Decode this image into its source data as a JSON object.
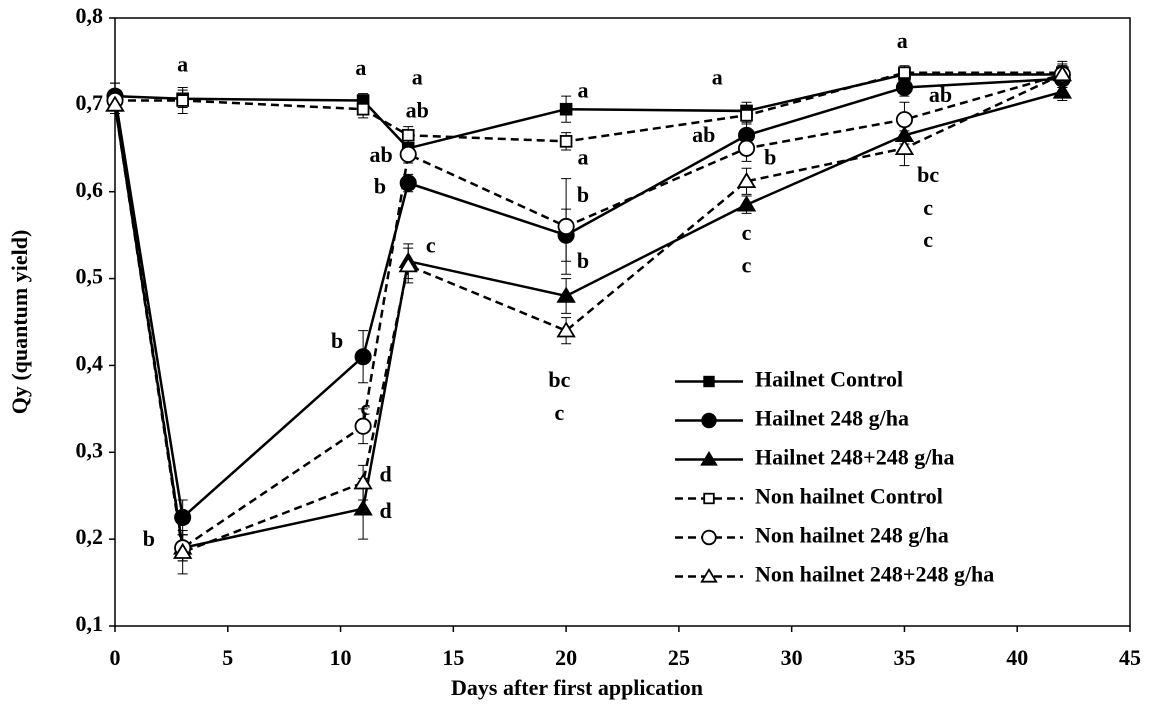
{
  "chart_data": {
    "type": "line",
    "xlabel": "Days after first application",
    "ylabel": "Qy (quantum yield)",
    "x": [
      0,
      3,
      11,
      13,
      20,
      28,
      35,
      42
    ],
    "xlim": [
      0,
      45
    ],
    "xticks": [
      0,
      5,
      10,
      15,
      20,
      25,
      30,
      35,
      40,
      45
    ],
    "ylim": [
      0.1,
      0.8
    ],
    "yticks": [
      {
        "value": 0.1,
        "label": "0,1"
      },
      {
        "value": 0.2,
        "label": "0,2"
      },
      {
        "value": 0.3,
        "label": "0,3"
      },
      {
        "value": 0.4,
        "label": "0,4"
      },
      {
        "value": 0.5,
        "label": "0,5"
      },
      {
        "value": 0.6,
        "label": "0,6"
      },
      {
        "value": 0.7,
        "label": "0,7"
      },
      {
        "value": 0.8,
        "label": "0,8"
      }
    ],
    "legend": "lower right",
    "series": [
      {
        "name": "Hailnet Control",
        "color": "#000000",
        "marker": "square",
        "filled": true,
        "dashed": false,
        "values": [
          0.71,
          0.707,
          0.705,
          0.65,
          0.695,
          0.693,
          0.735,
          0.735
        ],
        "errors": [
          0.015,
          0.01,
          0.008,
          0.01,
          0.015,
          0.01,
          0.008,
          0.01
        ]
      },
      {
        "name": "Hailnet 248 g/ha",
        "color": "#000000",
        "marker": "circle",
        "filled": true,
        "dashed": false,
        "values": [
          0.71,
          0.225,
          0.41,
          0.61,
          0.55,
          0.665,
          0.72,
          0.73
        ],
        "errors": [
          0.015,
          0.02,
          0.03,
          0.01,
          0.03,
          0.015,
          0.01,
          0.01
        ]
      },
      {
        "name": "Hailnet 248+248 g/ha",
        "color": "#000000",
        "marker": "triangle",
        "filled": true,
        "dashed": false,
        "values": [
          0.7,
          0.19,
          0.235,
          0.52,
          0.48,
          0.585,
          0.665,
          0.715
        ],
        "errors": [
          0.01,
          0.015,
          0.035,
          0.02,
          0.02,
          0.01,
          0.01,
          0.01
        ]
      },
      {
        "name": "Non hailnet Control",
        "color": "#000000",
        "marker": "square",
        "filled": false,
        "dashed": true,
        "values": [
          0.705,
          0.705,
          0.695,
          0.665,
          0.658,
          0.688,
          0.737,
          0.737
        ],
        "errors": [
          0.01,
          0.015,
          0.01,
          0.01,
          0.01,
          0.01,
          0.008,
          0.01
        ]
      },
      {
        "name": "Non hailnet 248 g/ha",
        "color": "#000000",
        "marker": "circle",
        "filled": false,
        "dashed": true,
        "values": [
          0.705,
          0.19,
          0.33,
          0.643,
          0.56,
          0.65,
          0.683,
          0.735
        ],
        "errors": [
          0.01,
          0.015,
          0.02,
          0.01,
          0.055,
          0.015,
          0.02,
          0.01
        ]
      },
      {
        "name": "Non hailnet 248+248 g/ha",
        "color": "#000000",
        "marker": "triangle",
        "filled": false,
        "dashed": true,
        "values": [
          0.7,
          0.185,
          0.265,
          0.515,
          0.44,
          0.612,
          0.65,
          0.735
        ],
        "errors": [
          0.01,
          0.025,
          0.02,
          0.02,
          0.015,
          0.015,
          0.02,
          0.015
        ]
      }
    ],
    "annotations": [
      {
        "text": "a",
        "x": 3,
        "y": 0.744
      },
      {
        "text": "a",
        "x": 10.9,
        "y": 0.74
      },
      {
        "text": "a",
        "x": 13.4,
        "y": 0.729
      },
      {
        "text": "ab",
        "x": 13.4,
        "y": 0.691
      },
      {
        "text": "a",
        "x": 20.75,
        "y": 0.714
      },
      {
        "text": "a",
        "x": 26.7,
        "y": 0.729
      },
      {
        "text": "a",
        "x": 34.9,
        "y": 0.771
      },
      {
        "text": "ab",
        "x": 11.8,
        "y": 0.64
      },
      {
        "text": "b",
        "x": 11.75,
        "y": 0.604
      },
      {
        "text": "a",
        "x": 20.75,
        "y": 0.637
      },
      {
        "text": "b",
        "x": 20.75,
        "y": 0.594
      },
      {
        "text": "ab",
        "x": 26.1,
        "y": 0.663
      },
      {
        "text": "ab",
        "x": 36.6,
        "y": 0.709
      },
      {
        "text": "b",
        "x": 29.05,
        "y": 0.637
      },
      {
        "text": "c",
        "x": 14,
        "y": 0.536
      },
      {
        "text": "b",
        "x": 20.75,
        "y": 0.518
      },
      {
        "text": "c",
        "x": 28,
        "y": 0.55
      },
      {
        "text": "c",
        "x": 28,
        "y": 0.513
      },
      {
        "text": "bc",
        "x": 36.05,
        "y": 0.617
      },
      {
        "text": "c",
        "x": 36.05,
        "y": 0.579
      },
      {
        "text": "c",
        "x": 36.05,
        "y": 0.542
      },
      {
        "text": "b",
        "x": 9.85,
        "y": 0.426
      },
      {
        "text": "c",
        "x": 11.1,
        "y": 0.349
      },
      {
        "text": "d",
        "x": 12,
        "y": 0.272
      },
      {
        "text": "d",
        "x": 12,
        "y": 0.23
      },
      {
        "text": "bc",
        "x": 19.7,
        "y": 0.381
      },
      {
        "text": "c",
        "x": 19.7,
        "y": 0.343
      },
      {
        "text": "b",
        "x": 1.5,
        "y": 0.198
      }
    ]
  }
}
